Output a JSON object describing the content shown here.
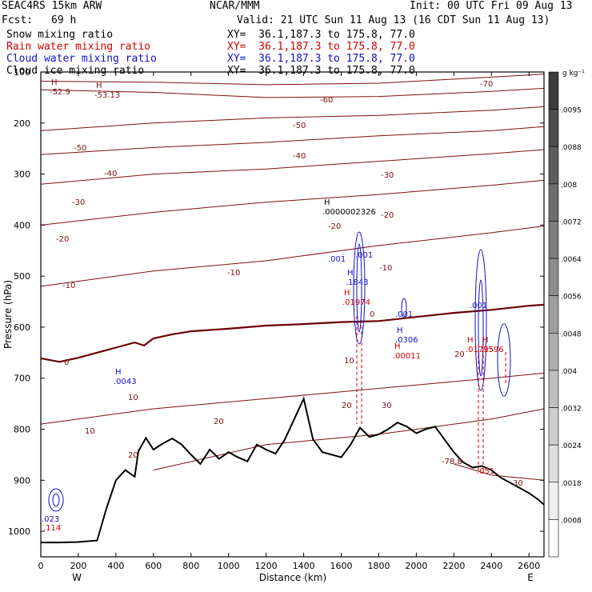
{
  "header": {
    "model": "SEAC4RS 15km ARW",
    "org": "NCAR/MMM",
    "init": "Init: 00 UTC Fri 09 Aug 13",
    "fcst_label": "Fcst:",
    "fcst_value": "69 h",
    "valid": "Valid: 21 UTC Sun 11 Aug 13 (16 CDT Sun 11 Aug 13)"
  },
  "fields": [
    {
      "name": "Snow mixing ratio",
      "xy": "XY=  36.1,187.3 to 175.8, 77.0",
      "color": "#000000"
    },
    {
      "name": "Rain water mixing ratio",
      "xy": "XY=  36.1,187.3 to 175.8, 77.0",
      "color": "#d00000"
    },
    {
      "name": "Cloud water mixing ratio",
      "xy": "XY=  36.1,187.3 to 175.8, 77.0",
      "color": "#1010c8"
    },
    {
      "name": "Cloud ice mixing ratio",
      "xy": "XY=  36.1,187.3 to 175.8, 77.0",
      "color": "#000000"
    }
  ],
  "chart_data": {
    "type": "contour-cross-section",
    "xlabel": "Distance (km)",
    "ylabel": "Pressure (hPa)",
    "xlim": [
      0,
      2680
    ],
    "ylim": [
      1050,
      100
    ],
    "xticks": [
      "0",
      "200",
      "400",
      "600",
      "800",
      "1000",
      "1200",
      "1400",
      "1600",
      "1800",
      "2000",
      "2200",
      "2400",
      "2600"
    ],
    "yticks": [
      "100",
      "200",
      "300",
      "400",
      "500",
      "600",
      "700",
      "800",
      "900",
      "1000"
    ],
    "left_end": "W",
    "right_end": "E",
    "colorbar": {
      "unit": "g kg⁻¹",
      "labels": [
        ".0095",
        ".0088",
        ".008",
        ".0072",
        ".0064",
        ".0056",
        ".0048",
        ".004",
        ".0032",
        ".0024",
        ".0018",
        ".0008"
      ]
    },
    "temperature_labels": [
      "-70",
      "-60",
      "-50",
      "-50",
      "-40",
      "-40",
      "-30",
      "-30",
      "-20",
      "-20",
      "-20",
      "-10",
      "-10",
      "-10",
      "0",
      "0",
      "10",
      "10",
      "10",
      "20",
      "20",
      "20",
      "20",
      "30",
      "30",
      "-78.8"
    ],
    "extrema": [
      {
        "mark": "H",
        "value": "-52.9"
      },
      {
        "mark": "H",
        "value": "-53.13"
      },
      {
        "mark": "H",
        "value": ".0000002326"
      },
      {
        "mark": "H",
        "value": ".1843"
      },
      {
        "mark": "H",
        "value": ".0306"
      },
      {
        "mark": "H",
        "value": ".00011"
      },
      {
        "mark": "H",
        "value": ".01974"
      },
      {
        "mark": "H",
        "value": ".0043"
      },
      {
        "mark": "H",
        "value": ".01795"
      },
      {
        "mark": "H",
        "value": ".1596"
      }
    ],
    "contour_values": [
      ".001",
      ".001",
      ".001",
      ".001",
      ".051",
      ".023",
      ".114"
    ],
    "terrain": {
      "x": [
        0,
        100,
        200,
        300,
        350,
        400,
        450,
        500,
        520,
        560,
        600,
        650,
        700,
        750,
        800,
        850,
        900,
        950,
        1000,
        1050,
        1100,
        1150,
        1200,
        1250,
        1300,
        1350,
        1400,
        1450,
        1500,
        1550,
        1600,
        1650,
        1700,
        1750,
        1800,
        1850,
        1900,
        1950,
        2000,
        2050,
        2100,
        2150,
        2200,
        2250,
        2300,
        2350,
        2400,
        2450,
        2500,
        2550,
        2600,
        2650,
        2680
      ],
      "p": [
        1022,
        1022,
        1021,
        1018,
        955,
        900,
        880,
        893,
        843,
        817,
        840,
        828,
        818,
        830,
        850,
        868,
        840,
        858,
        845,
        855,
        863,
        830,
        840,
        848,
        820,
        780,
        740,
        820,
        845,
        850,
        855,
        830,
        797,
        815,
        810,
        800,
        787,
        795,
        808,
        800,
        795,
        820,
        845,
        865,
        875,
        872,
        880,
        895,
        905,
        915,
        925,
        938,
        948
      ]
    },
    "freezing_level": {
      "x": [
        0,
        100,
        200,
        300,
        400,
        500,
        550,
        600,
        700,
        800,
        1000,
        1200,
        1400,
        1600,
        1800,
        2000,
        2200,
        2400,
        2600,
        2680
      ],
      "p": [
        661,
        668,
        660,
        650,
        640,
        630,
        636,
        622,
        614,
        608,
        603,
        597,
        594,
        590,
        588,
        580,
        572,
        566,
        558,
        556
      ]
    },
    "isotherms": [
      {
        "label": "-70",
        "x": [
          0,
          600,
          1200,
          1800,
          2400,
          2680
        ],
        "p": [
          118,
          120,
          125,
          122,
          110,
          104
        ]
      },
      {
        "label": "-60",
        "x": [
          0,
          600,
          1200,
          1800,
          2400,
          2680
        ],
        "p": [
          135,
          140,
          150,
          148,
          138,
          132
        ]
      },
      {
        "label": "-50",
        "x": [
          0,
          600,
          1200,
          1800,
          2400,
          2680
        ],
        "p": [
          215,
          200,
          190,
          185,
          175,
          168
        ]
      },
      {
        "label": "-40",
        "x": [
          0,
          600,
          1200,
          1800,
          2400,
          2680
        ],
        "p": [
          262,
          248,
          238,
          225,
          215,
          207
        ]
      },
      {
        "label": "-30",
        "x": [
          0,
          600,
          1200,
          1800,
          2400,
          2680
        ],
        "p": [
          320,
          300,
          290,
          275,
          260,
          252
        ]
      },
      {
        "label": "-20",
        "x": [
          0,
          600,
          1200,
          1800,
          2400,
          2680
        ],
        "p": [
          400,
          375,
          355,
          340,
          322,
          312
        ]
      },
      {
        "label": "-10",
        "x": [
          0,
          600,
          1200,
          1800,
          2400,
          2680
        ],
        "p": [
          520,
          490,
          470,
          440,
          415,
          402
        ]
      },
      {
        "label": "10",
        "x": [
          0,
          600,
          1200,
          1800,
          2400,
          2680
        ],
        "p": [
          790,
          760,
          740,
          720,
          700,
          690
        ]
      },
      {
        "label": "20",
        "x": [
          600,
          1200,
          1800,
          2400,
          2680
        ],
        "p": [
          880,
          830,
          810,
          780,
          760
        ]
      },
      {
        "label": "30",
        "x": [
          2200,
          2400,
          2680
        ],
        "p": [
          868,
          890,
          900
        ]
      }
    ]
  }
}
